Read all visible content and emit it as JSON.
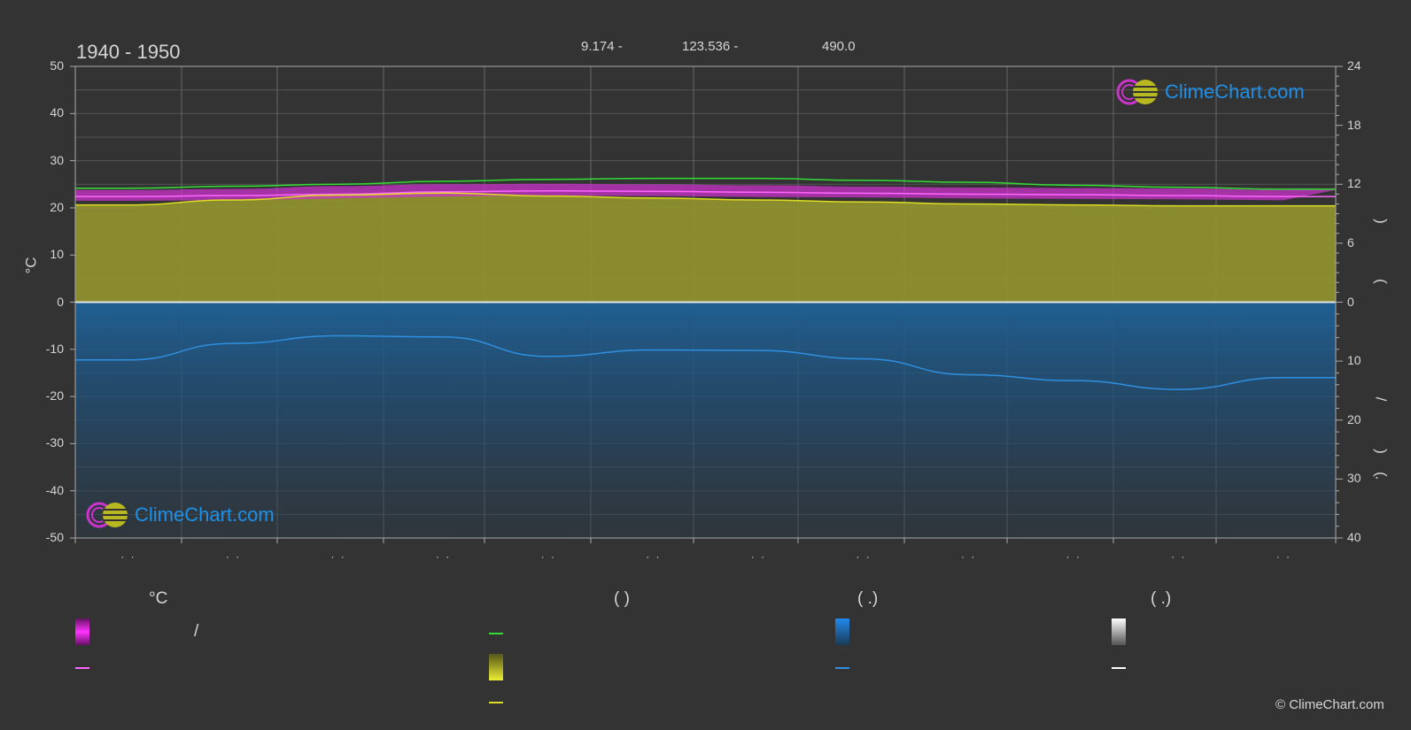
{
  "header": {
    "title": "1940 - 1950",
    "coords": [
      "9.174 -",
      "123.536 -",
      "490.0"
    ]
  },
  "brand": {
    "logo_text": "ClimeChart.com",
    "copyright": "© ClimeChart.com"
  },
  "colors": {
    "background": "#333333",
    "sunshine_fill": "#8f8f2e",
    "precip_fill": "#1f5a88",
    "daylight_line": "#33dd33",
    "temp_range_fill": "#cc33cc",
    "temp_mean_line": "#ff66ff",
    "sunshine_line": "#dddd22",
    "precip_line": "#2f8fe0",
    "zero_line": "#e6e6e6"
  },
  "axes": {
    "left_unit": "°C",
    "left_ticks": [
      "50",
      "40",
      "30",
      "20",
      "10",
      "0",
      "-10",
      "-20",
      "-30",
      "-40",
      "-50"
    ],
    "right_ticks_top": [
      "24",
      "18",
      "12",
      "6",
      "0"
    ],
    "right_ticks_bottom": [
      "10",
      "20",
      "30",
      "40"
    ],
    "right_side_chars": [
      ")",
      "(",
      "/",
      ")",
      "(",
      "."
    ],
    "x_ticks": [
      "· ·",
      "· ·",
      "· ·",
      "· ·",
      "· ·",
      "· ·",
      "· ·",
      "· ·",
      "· ·",
      "· ·",
      "· ·",
      "· ·"
    ]
  },
  "legend": {
    "headers": [
      {
        "text": "°C"
      },
      {
        "text": "(           )"
      },
      {
        "text": "(    .)"
      },
      {
        "text": "(    .)"
      }
    ],
    "slash": "/"
  },
  "chart_data": {
    "type": "area",
    "x": [
      "1",
      "2",
      "3",
      "4",
      "5",
      "6",
      "7",
      "8",
      "9",
      "10",
      "11",
      "12"
    ],
    "left_axis": {
      "unit": "°C",
      "ylim": [
        -50,
        50
      ]
    },
    "right_axis_top": {
      "ylim": [
        0,
        24
      ]
    },
    "right_axis_bottom": {
      "ylim": [
        0,
        40
      ],
      "inverted": true
    },
    "series": [
      {
        "key": "daylight",
        "axis": "right_top",
        "values": [
          11.6,
          11.8,
          12.0,
          12.3,
          12.5,
          12.6,
          12.6,
          12.4,
          12.2,
          11.9,
          11.7,
          11.5
        ]
      },
      {
        "key": "temp_max",
        "axis": "left",
        "values": [
          23.8,
          24.0,
          24.6,
          25.0,
          25.1,
          25.0,
          24.8,
          24.5,
          24.3,
          24.2,
          24.1,
          23.8
        ]
      },
      {
        "key": "temp_min",
        "axis": "left",
        "values": [
          21.5,
          21.6,
          22.0,
          22.4,
          22.6,
          22.5,
          22.3,
          22.2,
          22.0,
          21.9,
          21.8,
          21.6
        ]
      },
      {
        "key": "temp_mean",
        "axis": "left",
        "values": [
          22.4,
          22.6,
          22.9,
          23.4,
          23.6,
          23.5,
          23.3,
          23.1,
          22.9,
          22.8,
          22.6,
          22.4
        ]
      },
      {
        "key": "sunshine",
        "axis": "right_top",
        "values": [
          9.9,
          10.4,
          10.9,
          11.1,
          10.8,
          10.6,
          10.4,
          10.2,
          10.0,
          9.9,
          9.8,
          9.8
        ]
      },
      {
        "key": "precipitation",
        "axis": "right_bottom",
        "values": [
          9.8,
          7.0,
          5.7,
          5.9,
          9.2,
          8.1,
          8.2,
          9.6,
          12.3,
          13.3,
          14.8,
          12.8
        ]
      }
    ]
  }
}
